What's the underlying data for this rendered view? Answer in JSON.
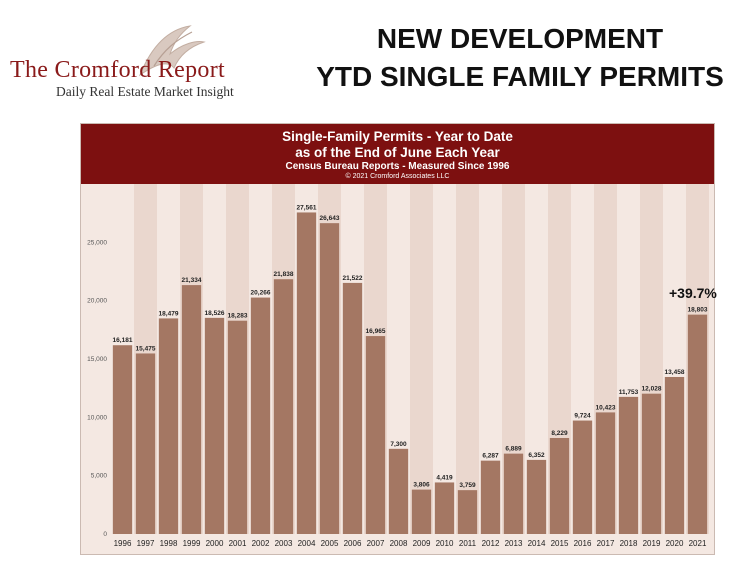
{
  "logo": {
    "name": "The Cromford Report",
    "tagline": "Daily Real Estate Market Insight"
  },
  "headline": {
    "line1": "NEW DEVELOPMENT",
    "line2": "YTD SINGLE FAMILY  PERMITS"
  },
  "chart_header": {
    "title": "Single-Family Permits - Year to Date",
    "subtitle": "as of the End of June Each Year",
    "source": "Census Bureau Reports - Measured Since 1996",
    "copyright": "© 2021 Cromford Associates LLC"
  },
  "annotation": "+39.7%",
  "colors": {
    "bar": "#a47763",
    "header": "#7d1010",
    "plot_bg": "#f4e8e2",
    "stripe": "#ead7ce"
  },
  "chart_data": {
    "type": "bar",
    "title": "Single-Family Permits - Year to Date",
    "categories": [
      "1996",
      "1997",
      "1998",
      "1999",
      "2000",
      "2001",
      "2002",
      "2003",
      "2004",
      "2005",
      "2006",
      "2007",
      "2008",
      "2009",
      "2010",
      "2011",
      "2012",
      "2013",
      "2014",
      "2015",
      "2016",
      "2017",
      "2018",
      "2019",
      "2020",
      "2021"
    ],
    "values": [
      16181,
      15475,
      18479,
      21334,
      18526,
      18283,
      20266,
      21838,
      27561,
      26643,
      21522,
      16965,
      7300,
      3806,
      4419,
      3759,
      6287,
      6889,
      6352,
      8229,
      9724,
      10423,
      11753,
      12028,
      13458,
      18803
    ],
    "value_labels": [
      "16,181",
      "15,475",
      "18,479",
      "21,334",
      "18,526",
      "18,283",
      "20,266",
      "21,838",
      "27,561",
      "26,643",
      "21,522",
      "16,965",
      "7,300",
      "3,806",
      "4,419",
      "3,759",
      "6,287",
      "6,889",
      "6,352",
      "8,229",
      "9,724",
      "10,423",
      "11,753",
      "12,028",
      "13,458",
      "18,803"
    ],
    "yticks": [
      0,
      5000,
      10000,
      15000,
      20000,
      25000
    ],
    "ytick_labels": [
      "0",
      "5,000",
      "10,000",
      "15,000",
      "20,000",
      "25,000"
    ],
    "ylim": [
      0,
      30000
    ],
    "xlabel": "",
    "ylabel": "",
    "grid": false,
    "legend": "none"
  }
}
